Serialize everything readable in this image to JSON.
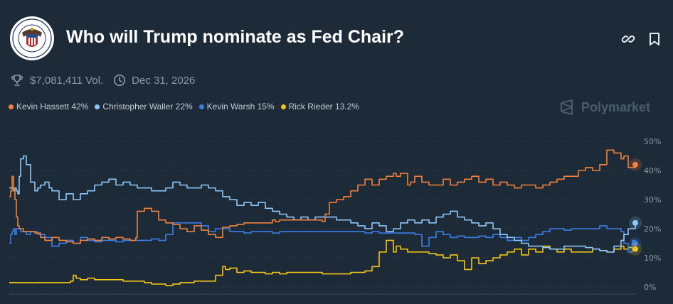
{
  "header": {
    "title": "Who will Trump nominate as Fed Chair?",
    "volume": "$7,081,411 Vol.",
    "end_date": "Dec 31, 2026",
    "brand": "Polymarket",
    "logo_icon": "federal-reserve-seal-icon",
    "link_icon": "link-icon",
    "bookmark_icon": "bookmark-icon"
  },
  "legend": [
    {
      "label": "Kevin Hassett 42%",
      "color": "#f2813b"
    },
    {
      "label": "Christopher Waller 22%",
      "color": "#8fc7f9"
    },
    {
      "label": "Kevin Warsh 15%",
      "color": "#3a7ee8"
    },
    {
      "label": "Rick Rieder 13.2%",
      "color": "#f5c518"
    }
  ],
  "chart_data": {
    "type": "line",
    "ylim": [
      0,
      50
    ],
    "yticks": [
      "50%",
      "40%",
      "30%",
      "20%",
      "10%",
      "0%"
    ],
    "grid": true,
    "series": [
      {
        "name": "Kevin Hassett",
        "color": "#f2813b",
        "x": [
          0,
          1,
          2,
          3,
          4,
          5,
          6,
          7,
          10,
          14,
          18,
          22,
          25,
          30,
          35,
          40,
          45,
          50,
          55,
          60,
          65,
          70,
          75,
          80,
          85,
          88,
          89,
          90,
          95,
          100,
          105,
          110,
          115,
          120,
          125,
          130,
          135,
          140,
          145,
          150,
          155,
          160,
          165,
          170,
          175,
          180,
          185,
          187,
          190,
          195,
          200,
          205,
          210,
          215,
          220,
          222,
          225,
          230,
          235,
          240,
          245,
          250,
          255,
          260,
          265,
          270,
          272,
          275,
          280,
          282,
          285,
          290,
          295,
          300,
          305,
          310,
          315,
          320,
          325,
          330,
          335,
          340,
          345,
          350,
          355,
          360,
          365,
          370,
          375,
          380,
          385,
          390,
          395,
          400,
          405,
          410,
          415,
          420,
          425,
          430,
          432,
          435,
          440
        ],
        "y": [
          31,
          33,
          38,
          34,
          30,
          24,
          21,
          20,
          19,
          19,
          18.5,
          17,
          16,
          17,
          16,
          15.5,
          15,
          16,
          16.5,
          16,
          17,
          16.5,
          17,
          16.5,
          16,
          16,
          17,
          26,
          27,
          26,
          23,
          22,
          21.5,
          20,
          19,
          21,
          19.5,
          18,
          17,
          20.5,
          21,
          21.5,
          22,
          22,
          22,
          22,
          23,
          22.5,
          23,
          23,
          23,
          23,
          23,
          23,
          22.5,
          25,
          29,
          30,
          31,
          33,
          35,
          37,
          35,
          37,
          38,
          39,
          38,
          39,
          35,
          36,
          38,
          36,
          35,
          35,
          37,
          35,
          36,
          37,
          38,
          36,
          37,
          35,
          36,
          35,
          34,
          35,
          35,
          34,
          35,
          36,
          37,
          38,
          38,
          40,
          41,
          40,
          42,
          47,
          46,
          44,
          45,
          41,
          42
        ]
      },
      {
        "name": "Christopher Waller",
        "color": "#8fc7f9",
        "x": [
          0,
          1,
          3,
          4,
          5,
          6,
          7,
          8,
          10,
          12,
          15,
          18,
          20,
          22,
          25,
          28,
          30,
          35,
          40,
          45,
          50,
          55,
          60,
          65,
          70,
          75,
          80,
          85,
          90,
          95,
          100,
          105,
          110,
          115,
          120,
          125,
          130,
          135,
          140,
          145,
          150,
          155,
          160,
          165,
          170,
          175,
          180,
          185,
          190,
          195,
          200,
          205,
          210,
          215,
          220,
          225,
          230,
          235,
          240,
          245,
          250,
          255,
          260,
          265,
          270,
          275,
          280,
          285,
          290,
          295,
          300,
          305,
          310,
          315,
          320,
          325,
          330,
          335,
          340,
          345,
          350,
          355,
          360,
          365,
          370,
          375,
          380,
          385,
          390,
          395,
          400,
          405,
          410,
          415,
          420,
          425,
          430,
          432,
          435,
          440
        ],
        "y": [
          34,
          34,
          33,
          34,
          33,
          32,
          38,
          44,
          45,
          42,
          36,
          33,
          34,
          35,
          36,
          34,
          33,
          30,
          32,
          30,
          32,
          33,
          35,
          36,
          37,
          35,
          36,
          35,
          34,
          34,
          33,
          33,
          34,
          36,
          35,
          34,
          34,
          35,
          34,
          33,
          31,
          30,
          28,
          29,
          28,
          29,
          27,
          26,
          25,
          24,
          23,
          24,
          23,
          24,
          24,
          24,
          23,
          23,
          22,
          21,
          20,
          22,
          21,
          19,
          20,
          22,
          23,
          22,
          23,
          22,
          24,
          25,
          26,
          24,
          23,
          22,
          21,
          22,
          20,
          18,
          17,
          16,
          15,
          14,
          14,
          13.5,
          13,
          13,
          14,
          14,
          14,
          13.5,
          13,
          12.5,
          12,
          14,
          16,
          18,
          20,
          22
        ]
      },
      {
        "name": "Kevin Warsh",
        "color": "#3a7ee8",
        "x": [
          0,
          1,
          2,
          3,
          4,
          5,
          8,
          10,
          12,
          15,
          20,
          25,
          30,
          35,
          40,
          45,
          50,
          55,
          60,
          65,
          70,
          75,
          80,
          85,
          90,
          95,
          100,
          105,
          110,
          115,
          120,
          125,
          130,
          135,
          140,
          145,
          150,
          155,
          160,
          165,
          170,
          175,
          180,
          185,
          190,
          195,
          200,
          205,
          210,
          215,
          220,
          225,
          230,
          235,
          240,
          245,
          250,
          255,
          260,
          265,
          270,
          275,
          280,
          285,
          290,
          295,
          300,
          305,
          310,
          315,
          320,
          325,
          330,
          335,
          340,
          345,
          350,
          355,
          360,
          365,
          370,
          375,
          380,
          385,
          390,
          395,
          400,
          405,
          410,
          415,
          420,
          425,
          430,
          432,
          435,
          438,
          440
        ],
        "y": [
          15,
          18,
          19,
          20,
          18,
          20,
          19,
          19,
          18,
          19,
          18,
          17,
          14,
          15,
          16,
          15,
          17,
          16,
          15.5,
          16,
          16,
          15.5,
          16,
          16,
          16,
          16,
          16.5,
          16,
          18,
          22,
          22,
          22,
          22,
          21,
          19,
          20,
          20,
          19,
          19,
          18.5,
          19,
          19,
          19,
          18.5,
          19,
          19,
          19,
          19,
          19,
          19,
          19,
          19,
          19,
          19,
          19,
          19,
          18.5,
          19,
          18.5,
          18.5,
          18.5,
          18.5,
          18.5,
          18,
          14,
          17,
          19,
          18,
          17,
          17.5,
          17,
          17,
          17.5,
          17,
          18,
          17,
          16,
          17,
          16,
          17,
          18,
          19,
          20,
          20,
          19.5,
          20,
          20,
          20,
          20,
          21,
          20,
          20,
          19,
          15,
          12,
          16,
          15
        ]
      },
      {
        "name": "Rick Rieder",
        "color": "#f5c518",
        "x": [
          0,
          10,
          20,
          30,
          40,
          43,
          45,
          47,
          50,
          55,
          60,
          70,
          80,
          90,
          95,
          100,
          105,
          110,
          115,
          120,
          130,
          140,
          145,
          150,
          152,
          155,
          160,
          165,
          170,
          175,
          180,
          185,
          190,
          195,
          200,
          210,
          220,
          230,
          240,
          250,
          255,
          260,
          265,
          270,
          272,
          275,
          280,
          285,
          290,
          295,
          300,
          305,
          310,
          315,
          320,
          325,
          330,
          335,
          340,
          345,
          350,
          355,
          360,
          365,
          370,
          375,
          380,
          385,
          390,
          395,
          400,
          405,
          410,
          415,
          420,
          425,
          430,
          432,
          435,
          440
        ],
        "y": [
          1.5,
          1.5,
          1.5,
          1.5,
          1.5,
          2,
          4,
          3,
          2.5,
          3,
          2.5,
          2.5,
          2,
          2,
          1.5,
          1,
          1,
          0.5,
          1,
          1.5,
          2,
          2,
          4,
          7,
          6,
          6.5,
          5,
          5.5,
          5,
          5,
          4.5,
          5,
          4.5,
          5,
          5,
          5,
          4.5,
          4.5,
          5,
          5.5,
          7,
          12,
          16,
          12,
          14,
          13,
          12,
          12,
          12,
          11.5,
          11,
          10,
          11,
          9,
          6,
          10,
          8,
          9,
          10,
          11,
          12,
          13,
          11,
          13,
          12,
          14,
          13,
          12,
          13,
          12,
          12,
          12,
          13,
          12.5,
          12,
          13,
          14,
          13,
          13.5,
          13
        ]
      }
    ]
  }
}
